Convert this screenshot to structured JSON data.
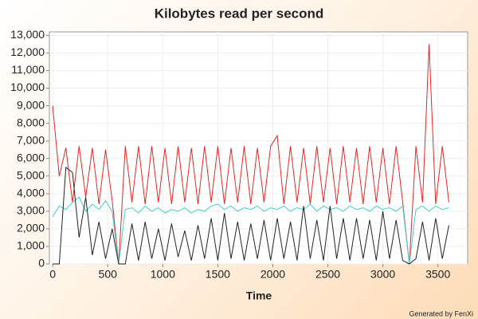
{
  "chart_data": {
    "type": "line",
    "title": "Kilobytes read per second",
    "xlabel": "Time",
    "footnote": "Generated by FenXi",
    "x": [
      0,
      60,
      120,
      180,
      240,
      300,
      360,
      420,
      480,
      540,
      600,
      660,
      720,
      780,
      840,
      900,
      960,
      1020,
      1080,
      1140,
      1200,
      1260,
      1320,
      1380,
      1440,
      1500,
      1560,
      1620,
      1680,
      1740,
      1800,
      1860,
      1920,
      1980,
      2040,
      2100,
      2160,
      2220,
      2280,
      2340,
      2400,
      2460,
      2520,
      2580,
      2640,
      2700,
      2760,
      2820,
      2880,
      2940,
      3000,
      3060,
      3120,
      3180,
      3240,
      3300,
      3360,
      3420,
      3480,
      3540,
      3600
    ],
    "series": [
      {
        "color": "#ee2222",
        "values": [
          9000,
          5000,
          6600,
          3500,
          6700,
          3800,
          6600,
          3400,
          6500,
          3600,
          0,
          6700,
          3500,
          6700,
          3400,
          6700,
          3500,
          6600,
          3400,
          6700,
          3500,
          6600,
          3400,
          6700,
          3500,
          6700,
          3400,
          6600,
          3500,
          6700,
          3400,
          6600,
          3500,
          6700,
          7300,
          3400,
          6700,
          3500,
          6600,
          3400,
          6700,
          3500,
          6600,
          3400,
          6700,
          3500,
          6600,
          3400,
          6700,
          3500,
          6600,
          3400,
          6700,
          3500,
          0,
          6700,
          3500,
          12500,
          3400,
          6700,
          3500
        ]
      },
      {
        "color": "#44cccc",
        "values": [
          2700,
          3300,
          3100,
          3500,
          3800,
          3000,
          3400,
          3100,
          3600,
          3000,
          0,
          3100,
          3200,
          2900,
          3300,
          3000,
          3200,
          2900,
          3100,
          3000,
          3200,
          2900,
          3100,
          3000,
          3300,
          3400,
          3100,
          3300,
          3000,
          3200,
          3100,
          3300,
          3000,
          3200,
          3100,
          3300,
          3000,
          3200,
          3100,
          3400,
          3000,
          3300,
          3100,
          3200,
          3000,
          3300,
          3100,
          3200,
          3000,
          3300,
          3100,
          3200,
          3000,
          3300,
          0,
          3100,
          3300,
          3000,
          3300,
          3100,
          3200
        ]
      },
      {
        "color": "#222222",
        "values": [
          0,
          0,
          5500,
          5200,
          1500,
          3800,
          500,
          2400,
          300,
          2000,
          0,
          0,
          2300,
          200,
          2400,
          300,
          2000,
          200,
          2300,
          400,
          1900,
          200,
          2200,
          300,
          2600,
          200,
          2900,
          300,
          2400,
          200,
          2300,
          300,
          2500,
          200,
          2600,
          300,
          2400,
          200,
          3300,
          300,
          2500,
          200,
          3300,
          300,
          2600,
          200,
          2600,
          300,
          2500,
          200,
          3000,
          300,
          2500,
          200,
          0,
          300,
          2400,
          200,
          2600,
          300,
          2200
        ]
      }
    ],
    "xlim": [
      -30,
      3770
    ],
    "xticks": [
      0,
      500,
      1000,
      1500,
      2000,
      2500,
      3000,
      3500
    ],
    "ylim": [
      0,
      13200
    ],
    "yticks": [
      0,
      {
        "value": 1000,
        "label": "1,000"
      },
      {
        "value": 2000,
        "label": "2,000"
      },
      {
        "value": 3000,
        "label": "3,000"
      },
      {
        "value": 4000,
        "label": "4,000"
      },
      {
        "value": 5000,
        "label": "5,000"
      },
      {
        "value": 6000,
        "label": "6,000"
      },
      {
        "value": 7000,
        "label": "7,000"
      },
      {
        "value": 8000,
        "label": "8,000"
      },
      {
        "value": 9000,
        "label": "9,000"
      },
      {
        "value": 10000,
        "label": "10,000"
      },
      {
        "value": 11000,
        "label": "11,000"
      },
      {
        "value": 12000,
        "label": "12,000"
      },
      {
        "value": 13000,
        "label": "13,000"
      }
    ],
    "grid": true
  }
}
